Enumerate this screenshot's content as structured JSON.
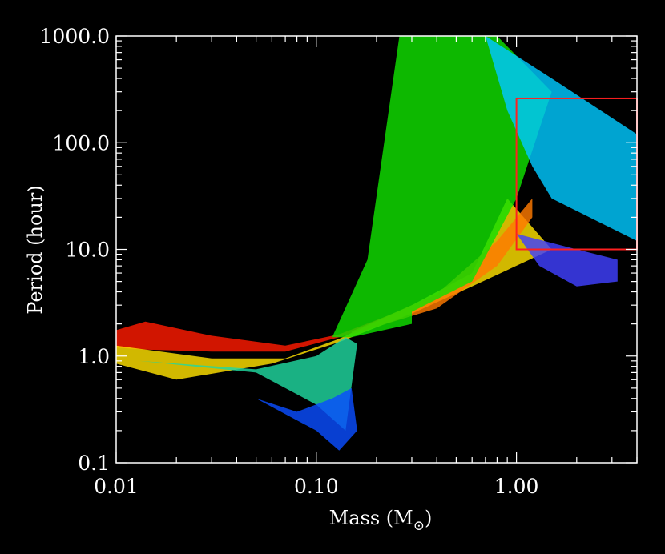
{
  "chart_data": {
    "type": "scatter",
    "xlabel": "Mass (M",
    "xlabel_symbol": "⊙",
    "xlabel_close": ")",
    "ylabel": "Period (hour)",
    "xscale": "log",
    "yscale": "log",
    "xlim": [
      0.01,
      4.0
    ],
    "ylim": [
      0.1,
      1000.0
    ],
    "x_ticks": [
      {
        "value": 0.01,
        "label": "0.01"
      },
      {
        "value": 0.1,
        "label": "0.10"
      },
      {
        "value": 1.0,
        "label": "1.00"
      }
    ],
    "y_ticks": [
      {
        "value": 0.1,
        "label": "0.1"
      },
      {
        "value": 1.0,
        "label": "1.0"
      },
      {
        "value": 10.0,
        "label": "10.0"
      },
      {
        "value": 100.0,
        "label": "100.0"
      },
      {
        "value": 1000.0,
        "label": "1000.0"
      }
    ],
    "background": "#000000",
    "axis_color": "#ffffff",
    "box_color": "#ff2020",
    "box": {
      "x": [
        1.0,
        4.0
      ],
      "y": [
        10.0,
        260.0
      ]
    },
    "colormap": "rainbow",
    "bands": [
      {
        "color": "#ff1a00",
        "upper": [
          [
            0.01,
            1.75
          ],
          [
            0.014,
            2.1
          ],
          [
            0.03,
            1.55
          ],
          [
            0.07,
            1.25
          ],
          [
            0.13,
            1.6
          ],
          [
            0.27,
            2.7
          ]
        ],
        "lower": [
          [
            0.27,
            2.25
          ],
          [
            0.13,
            1.5
          ],
          [
            0.07,
            1.1
          ],
          [
            0.03,
            1.1
          ],
          [
            0.014,
            1.15
          ],
          [
            0.01,
            1.2
          ]
        ]
      },
      {
        "color": "#ffe000",
        "upper": [
          [
            0.01,
            1.25
          ],
          [
            0.03,
            0.95
          ],
          [
            0.07,
            0.95
          ],
          [
            0.13,
            1.45
          ],
          [
            0.3,
            3.0
          ],
          [
            0.6,
            6.0
          ],
          [
            0.9,
            30.0
          ]
        ],
        "lower": [
          [
            1.5,
            10.0
          ],
          [
            0.6,
            4.5
          ],
          [
            0.3,
            2.5
          ],
          [
            0.13,
            1.35
          ],
          [
            0.06,
            0.85
          ],
          [
            0.02,
            0.6
          ],
          [
            0.01,
            0.85
          ]
        ]
      },
      {
        "color": "#ff7a00",
        "upper": [
          [
            0.15,
            1.7
          ],
          [
            0.4,
            3.8
          ],
          [
            0.8,
            12.0
          ],
          [
            1.2,
            30.0
          ]
        ],
        "lower": [
          [
            1.2,
            20.0
          ],
          [
            0.8,
            7.0
          ],
          [
            0.4,
            2.8
          ],
          [
            0.15,
            1.6
          ]
        ]
      },
      {
        "color": "#10e000",
        "upper": [
          [
            0.12,
            1.5
          ],
          [
            0.18,
            8.0
          ],
          [
            0.26,
            1000.0
          ],
          [
            0.8,
            1000.0
          ],
          [
            1.5,
            300.0
          ],
          [
            1.0,
            30.0
          ],
          [
            0.6,
            5.0
          ],
          [
            0.3,
            2.6
          ]
        ],
        "lower": [
          [
            0.3,
            2.0
          ],
          [
            0.15,
            1.5
          ]
        ]
      },
      {
        "color": "#20d8a0",
        "upper": [
          [
            0.013,
            0.9
          ],
          [
            0.05,
            0.7
          ],
          [
            0.1,
            0.35
          ],
          [
            0.14,
            0.2
          ],
          [
            0.16,
            1.3
          ],
          [
            0.14,
            1.5
          ]
        ],
        "lower": [
          [
            0.14,
            1.5
          ],
          [
            0.1,
            1.0
          ],
          [
            0.05,
            0.75
          ]
        ]
      },
      {
        "color": "#0a4dff",
        "upper": [
          [
            0.05,
            0.4
          ],
          [
            0.1,
            0.2
          ],
          [
            0.13,
            0.13
          ],
          [
            0.16,
            0.2
          ],
          [
            0.15,
            0.5
          ]
        ],
        "lower": [
          [
            0.12,
            0.4
          ],
          [
            0.08,
            0.3
          ]
        ]
      },
      {
        "color": "#4040ff",
        "upper": [
          [
            1.0,
            14.0
          ],
          [
            2.0,
            10.0
          ],
          [
            3.2,
            8.0
          ]
        ],
        "lower": [
          [
            3.2,
            5.0
          ],
          [
            2.0,
            4.5
          ],
          [
            1.3,
            7.0
          ]
        ]
      },
      {
        "color": "#00c8ff",
        "upper": [
          [
            0.7,
            1000.0
          ],
          [
            1.5,
            400.0
          ],
          [
            4.0,
            120.0
          ],
          [
            4.0,
            12.0
          ],
          [
            1.5,
            30.0
          ]
        ],
        "lower": [
          [
            1.2,
            60.0
          ],
          [
            0.9,
            200.0
          ]
        ]
      }
    ]
  }
}
